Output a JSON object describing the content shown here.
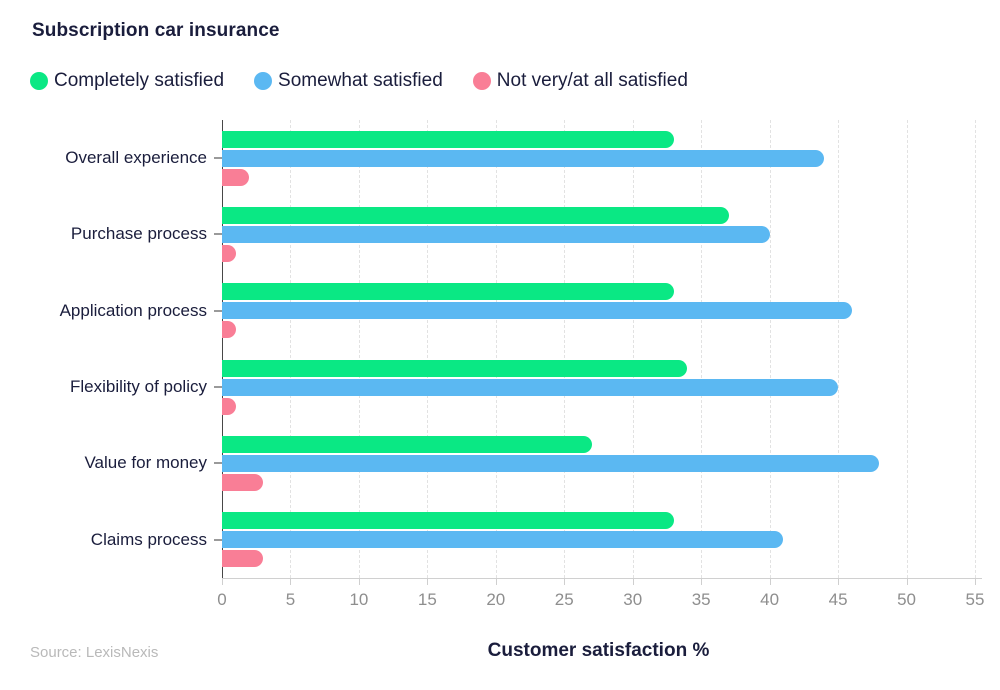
{
  "page": {
    "title": "Subscription car insurance",
    "source": "Source: LexisNexis"
  },
  "legend": {
    "items": [
      {
        "label": "Completely satisfied",
        "color": "#0ae884"
      },
      {
        "label": "Somewhat satisfied",
        "color": "#5bb8f2"
      },
      {
        "label": "Not very/at all satisfied",
        "color": "#f97e96"
      }
    ]
  },
  "chart_data": {
    "type": "bar",
    "orientation": "horizontal",
    "title": "Subscription car insurance",
    "xlabel": "Customer satisfaction %",
    "ylabel": "",
    "xlim": [
      0,
      55
    ],
    "x_ticks": [
      0,
      5,
      10,
      15,
      20,
      25,
      30,
      35,
      40,
      45,
      50,
      55
    ],
    "grid": "vertical-dashed",
    "legend_position": "top",
    "categories": [
      "Overall experience",
      "Purchase process",
      "Application process",
      "Flexibility of policy",
      "Value for money",
      "Claims process"
    ],
    "series": [
      {
        "name": "Completely satisfied",
        "color": "#0ae884",
        "values": [
          33,
          37,
          33,
          34,
          27,
          33
        ]
      },
      {
        "name": "Somewhat satisfied",
        "color": "#5bb8f2",
        "values": [
          44,
          40,
          46,
          45,
          48,
          41
        ]
      },
      {
        "name": "Not very/at all satisfied",
        "color": "#f97e96",
        "values": [
          2,
          1,
          1,
          1,
          3,
          3
        ]
      }
    ]
  },
  "colors": {
    "text_dark": "#1a1d3c",
    "tick_gray": "#8e8e8e",
    "source_gray": "#b9b9b9",
    "grid": "#e2e2e2",
    "axis": "#474747"
  }
}
